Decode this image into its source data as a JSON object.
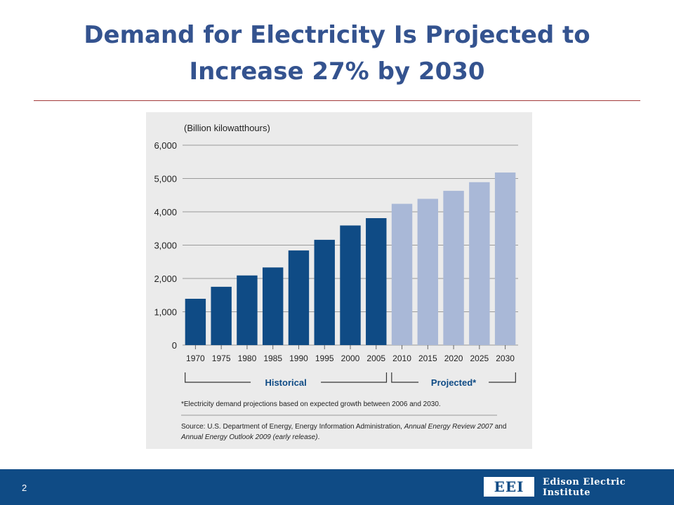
{
  "slide": {
    "title_line1": "Demand for Electricity Is Projected to",
    "title_line2": "Increase 27% by 2030",
    "page_number": "2"
  },
  "logo": {
    "mark": "EEI",
    "line1": "Edison Electric",
    "line2": "Institute"
  },
  "colors": {
    "title": "#34538f",
    "historical_bar": "#0f4b85",
    "projected_bar": "#a9b8d7",
    "footer": "#0f4b85",
    "rule": "#a33a3a"
  },
  "chart_data": {
    "type": "bar",
    "unit_label": "(Billion kilowatthours)",
    "categories": [
      "1970",
      "1975",
      "1980",
      "1985",
      "1990",
      "1995",
      "2000",
      "2005",
      "2010",
      "2015",
      "2020",
      "2025",
      "2030"
    ],
    "series": [
      {
        "name": "Historical",
        "values": [
          1390,
          1750,
          2090,
          2330,
          2840,
          3160,
          3590,
          3810,
          null,
          null,
          null,
          null,
          null
        ]
      },
      {
        "name": "Projected*",
        "values": [
          null,
          null,
          null,
          null,
          null,
          null,
          null,
          null,
          4240,
          4390,
          4630,
          4890,
          5180
        ]
      }
    ],
    "yticks": [
      "0",
      "1,000",
      "2,000",
      "3,000",
      "4,000",
      "5,000",
      "6,000"
    ],
    "ylim": [
      0,
      6000
    ],
    "grid": true,
    "groups": [
      {
        "label": "Historical",
        "from": "1970",
        "to": "2005"
      },
      {
        "label": "Projected*",
        "from": "2010",
        "to": "2030"
      }
    ],
    "footnote": "*Electricity demand projections based on expected growth between 2006 and 2030.",
    "source_prefix": "Source: U.S. Department of Energy, Energy Information Administration, ",
    "source_title1": "Annual Energy Review 2007",
    "source_and": " and",
    "source_title2": "Annual Energy Outlook 2009 (early release)",
    "source_end": "."
  }
}
